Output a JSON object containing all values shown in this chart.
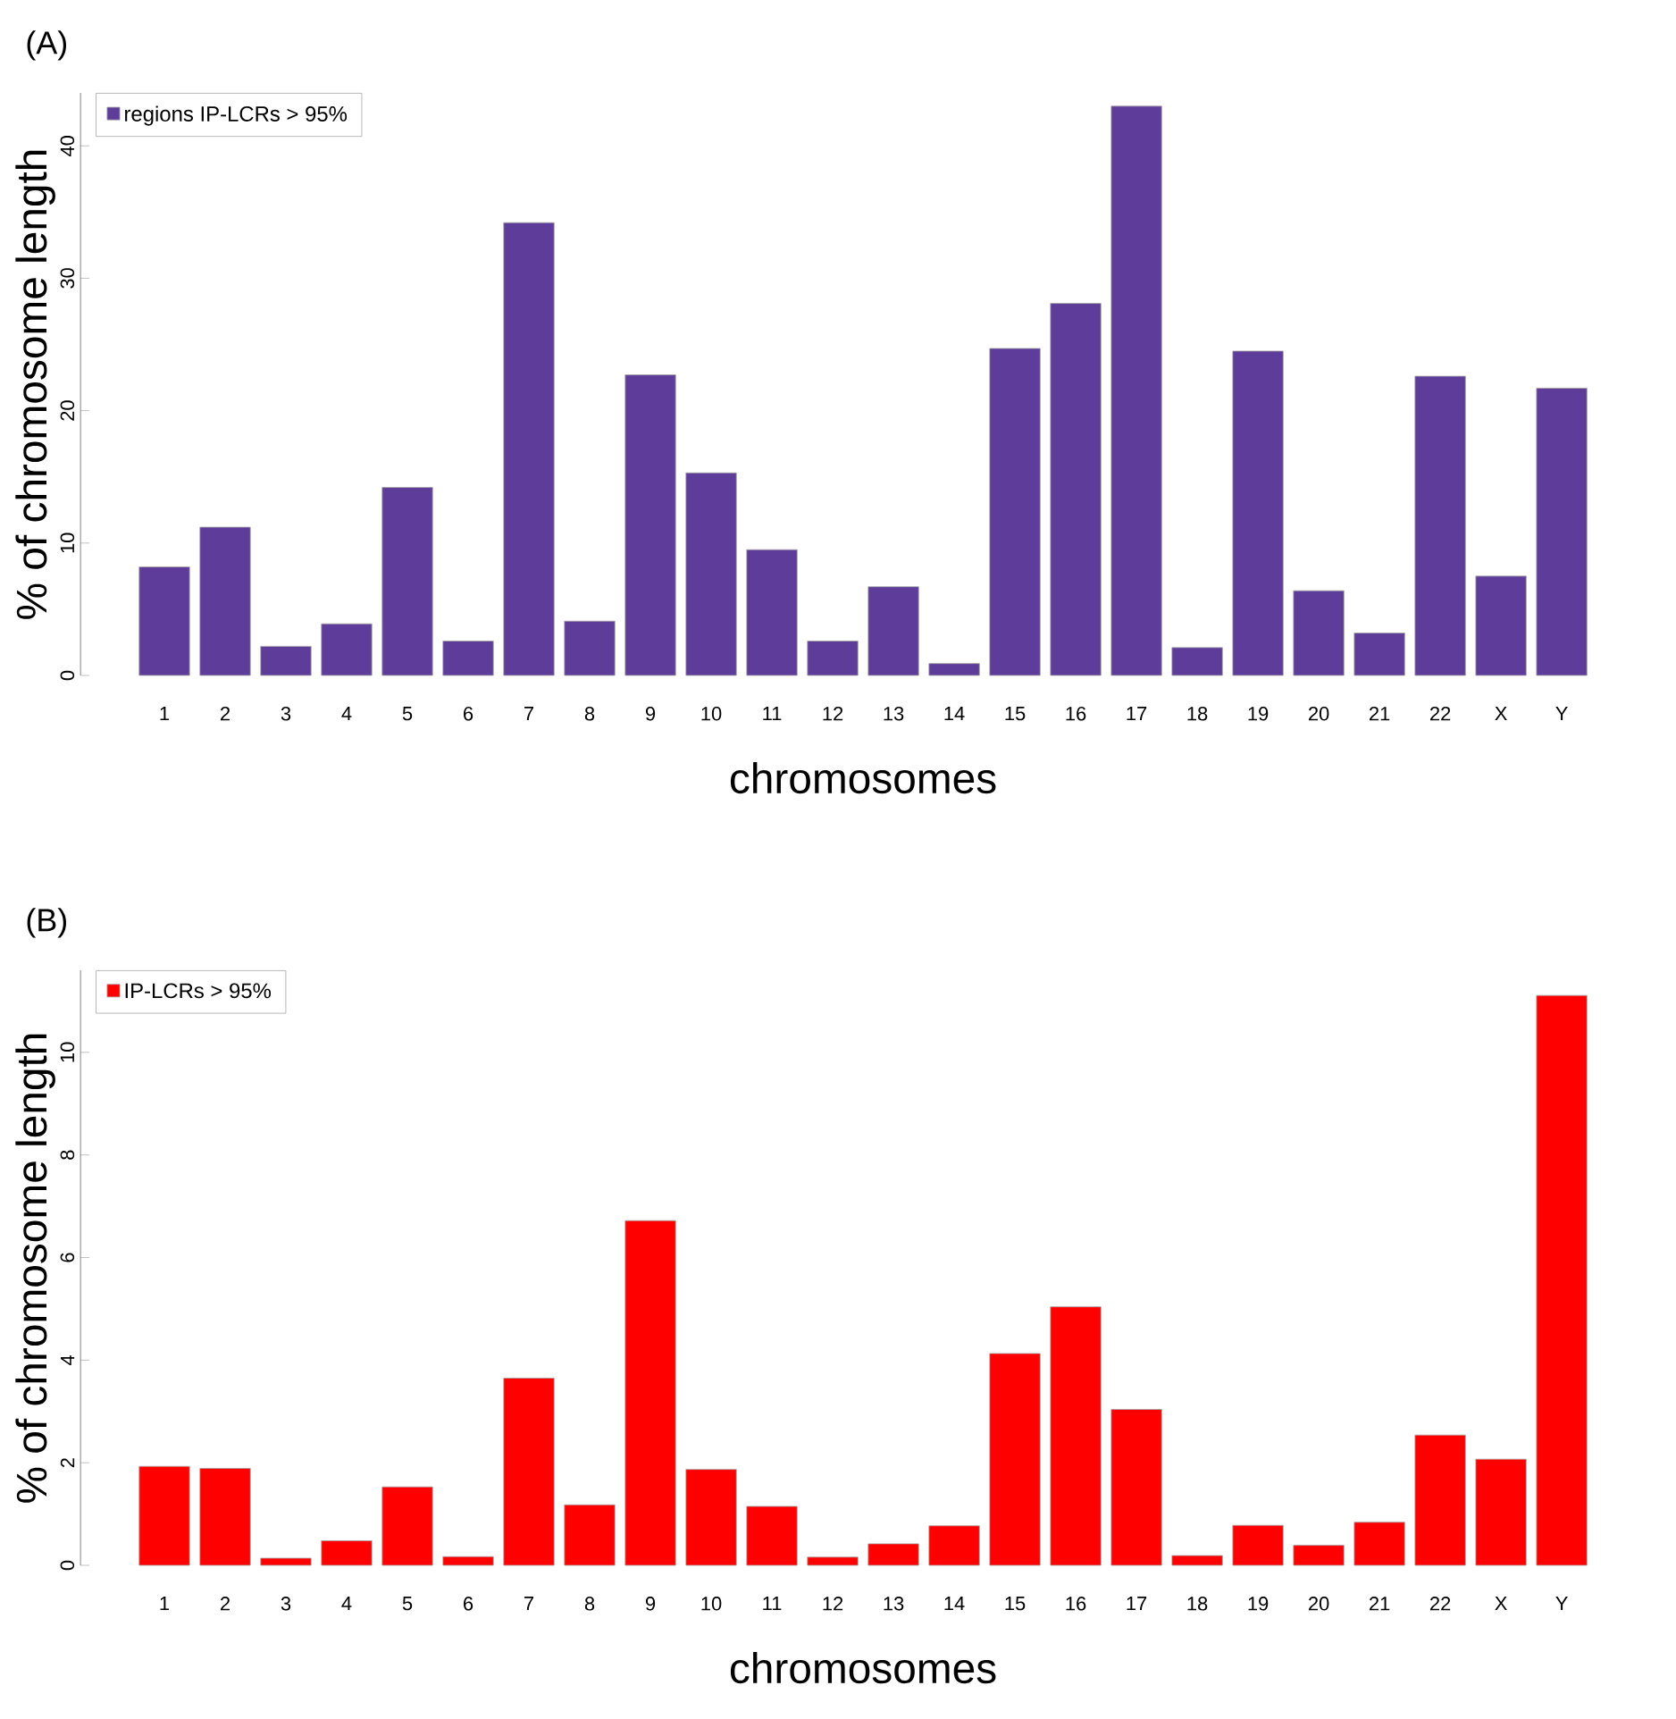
{
  "chart_data": [
    {
      "type": "bar",
      "title": "(A)",
      "xlabel": "chromosomes",
      "ylabel": "% of chromosome length",
      "categories": [
        "1",
        "2",
        "3",
        "4",
        "5",
        "6",
        "7",
        "8",
        "9",
        "10",
        "11",
        "12",
        "13",
        "14",
        "15",
        "16",
        "17",
        "18",
        "19",
        "20",
        "21",
        "22",
        "X",
        "Y"
      ],
      "series": [
        {
          "name": "regions IP-LCRs > 95%",
          "color": "#5e3c99",
          "values": [
            8.2,
            11.2,
            2.2,
            3.9,
            14.2,
            2.6,
            34.2,
            4.1,
            22.7,
            15.3,
            9.5,
            2.6,
            6.7,
            0.9,
            24.7,
            28.1,
            43.0,
            2.1,
            24.5,
            6.4,
            3.2,
            22.6,
            7.5,
            21.7
          ]
        }
      ],
      "ylim": [
        0,
        44
      ],
      "yticks": [
        0,
        10,
        20,
        30,
        40
      ],
      "legend": "top left"
    },
    {
      "type": "bar",
      "title": "(B)",
      "xlabel": "chromosomes",
      "ylabel": "% of chromosome length",
      "categories": [
        "1",
        "2",
        "3",
        "4",
        "5",
        "6",
        "7",
        "8",
        "9",
        "10",
        "11",
        "12",
        "13",
        "14",
        "15",
        "16",
        "17",
        "18",
        "19",
        "20",
        "21",
        "22",
        "X",
        "Y"
      ],
      "series": [
        {
          "name": "IP-LCRs > 95%",
          "color": "#ff0000",
          "values": [
            1.93,
            1.89,
            0.14,
            0.48,
            1.53,
            0.17,
            3.65,
            1.18,
            6.72,
            1.87,
            1.15,
            0.16,
            0.42,
            0.77,
            4.13,
            5.04,
            3.04,
            0.19,
            0.78,
            0.39,
            0.84,
            2.54,
            2.07,
            11.11
          ]
        }
      ],
      "ylim": [
        0,
        11.6
      ],
      "yticks": [
        0,
        2,
        4,
        6,
        8,
        10
      ],
      "legend": "top left"
    }
  ]
}
